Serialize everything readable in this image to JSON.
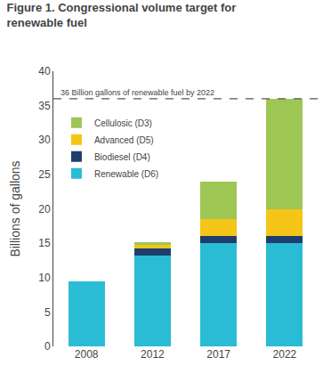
{
  "chart_data": {
    "type": "bar",
    "stacked": true,
    "title": [
      "Figure 1. Congressional volume target for",
      "renewable fuel"
    ],
    "y_label": "Billions of gallons",
    "categories": [
      "2008",
      "2012",
      "2017",
      "2022"
    ],
    "series": [
      {
        "name": "Renewable (D6)",
        "color": "#29bcd4",
        "values": [
          9.5,
          13.2,
          15.0,
          15.0
        ]
      },
      {
        "name": "Biodiesel (D4)",
        "color": "#1e3f6e",
        "values": [
          0.0,
          1.0,
          1.0,
          1.0
        ]
      },
      {
        "name": "Advanced (D5)",
        "color": "#f5c518",
        "values": [
          0.0,
          0.5,
          2.5,
          4.0
        ]
      },
      {
        "name": "Cellulosic (D3)",
        "color": "#9dc655",
        "values": [
          0.0,
          0.5,
          5.5,
          16.0
        ]
      }
    ],
    "reference_line": {
      "value": 36,
      "label": "36 Billion gallons of renewable fuel by 2022",
      "color": "#555555",
      "line_style": "dashed"
    },
    "ylim": [
      0,
      40
    ],
    "yticks": [
      0,
      5,
      10,
      15,
      20,
      25,
      30,
      35,
      40
    ],
    "grid": false,
    "legend": "upper left"
  }
}
